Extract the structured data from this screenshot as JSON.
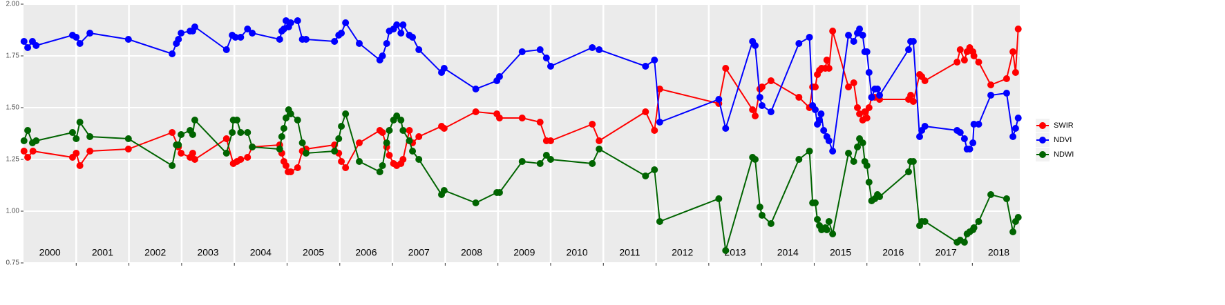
{
  "chart_data": {
    "type": "line",
    "xlim": [
      2000,
      2018.9
    ],
    "ylim": [
      0.75,
      2.0
    ],
    "yticks": [
      0.75,
      {
        "value": 1,
        "label": "1.00"
      },
      1.25,
      {
        "value": 1.5,
        "label": "1.50"
      },
      1.75,
      {
        "value": 2,
        "label": "2.00"
      }
    ],
    "xticks": [
      {
        "value": 2000.5,
        "label": "2000"
      },
      {
        "value": 2001.5,
        "label": "2001"
      },
      {
        "value": 2002.5,
        "label": "2002"
      },
      {
        "value": 2003.5,
        "label": "2003"
      },
      {
        "value": 2004.5,
        "label": "2004"
      },
      {
        "value": 2005.5,
        "label": "2005"
      },
      {
        "value": 2006.5,
        "label": "2006"
      },
      {
        "value": 2007.5,
        "label": "2007"
      },
      {
        "value": 2008.5,
        "label": "2008"
      },
      {
        "value": 2009.5,
        "label": "2009"
      },
      {
        "value": 2010.5,
        "label": "2010"
      },
      {
        "value": 2011.5,
        "label": "2011"
      },
      {
        "value": 2012.5,
        "label": "2012"
      },
      {
        "value": 2013.5,
        "label": "2013"
      },
      {
        "value": 2014.5,
        "label": "2014"
      },
      {
        "value": 2015.5,
        "label": "2015"
      },
      {
        "value": 2016.5,
        "label": "2016"
      },
      {
        "value": 2017.5,
        "label": "2017"
      },
      {
        "value": 2018.5,
        "label": "2018"
      }
    ],
    "xgrid": [
      2001,
      2002,
      2003,
      2004,
      2005,
      2006,
      2007,
      2008,
      2009,
      2010,
      2011,
      2012,
      2013,
      2014,
      2015,
      2016,
      2017,
      2018
    ],
    "grid": true,
    "legend": "right",
    "series": [
      {
        "name": "SWIR",
        "color": "#ff0000",
        "x": [
          2000.01,
          2000.08,
          2000.18,
          2000.93,
          2001.0,
          2001.07,
          2001.26,
          2001.99,
          2002.82,
          2002.94,
          2002.99,
          2003.16,
          2003.21,
          2003.25,
          2003.85,
          2003.98,
          2004.05,
          2004.12,
          2004.25,
          2004.34,
          2004.86,
          2004.9,
          2004.94,
          2004.98,
          2005.02,
          2005.07,
          2005.2,
          2005.29,
          2005.36,
          2005.9,
          2005.98,
          2006.03,
          2006.11,
          2006.37,
          2006.76,
          2006.81,
          2006.89,
          2006.94,
          2007.02,
          2007.08,
          2007.16,
          2007.2,
          2007.32,
          2007.38,
          2007.5,
          2007.93,
          2007.98,
          2008.58,
          2008.98,
          2009.03,
          2009.46,
          2009.8,
          2009.92,
          2010.0,
          2010.79,
          2010.92,
          2011.8,
          2011.97,
          2012.07,
          2013.19,
          2013.32,
          2013.83,
          2013.88,
          2013.97,
          2014.01,
          2014.18,
          2014.71,
          2014.91,
          2014.97,
          2015.02,
          2015.06,
          2015.1,
          2015.14,
          2015.21,
          2015.24,
          2015.28,
          2015.35,
          2015.65,
          2015.75,
          2015.82,
          2015.86,
          2015.92,
          2015.96,
          2016.0,
          2016.04,
          2016.09,
          2016.15,
          2016.24,
          2016.79,
          2016.83,
          2016.88,
          2017.0,
          2017.04,
          2017.1,
          2017.71,
          2017.77,
          2017.85,
          2017.9,
          2017.95,
          2018.01,
          2018.03,
          2018.12,
          2018.35,
          2018.65,
          2018.77,
          2018.82,
          2018.87
        ],
        "values": [
          1.29,
          1.26,
          1.29,
          1.26,
          1.28,
          1.22,
          1.29,
          1.3,
          1.38,
          1.31,
          1.28,
          1.26,
          1.28,
          1.25,
          1.35,
          1.23,
          1.24,
          1.25,
          1.26,
          1.31,
          1.32,
          1.28,
          1.24,
          1.22,
          1.19,
          1.19,
          1.21,
          1.29,
          1.3,
          1.32,
          1.28,
          1.24,
          1.21,
          1.33,
          1.39,
          1.38,
          1.31,
          1.27,
          1.23,
          1.22,
          1.23,
          1.25,
          1.39,
          1.33,
          1.36,
          1.41,
          1.4,
          1.48,
          1.47,
          1.45,
          1.45,
          1.43,
          1.34,
          1.34,
          1.42,
          1.34,
          1.48,
          1.39,
          1.59,
          1.52,
          1.69,
          1.49,
          1.46,
          1.59,
          1.6,
          1.63,
          1.55,
          1.5,
          1.6,
          1.6,
          1.66,
          1.68,
          1.69,
          1.69,
          1.73,
          1.69,
          1.87,
          1.6,
          1.62,
          1.5,
          1.47,
          1.44,
          1.48,
          1.45,
          1.5,
          1.55,
          1.55,
          1.54,
          1.54,
          1.56,
          1.53,
          1.66,
          1.65,
          1.63,
          1.72,
          1.78,
          1.73,
          1.77,
          1.79,
          1.77,
          1.75,
          1.72,
          1.61,
          1.64,
          1.77,
          1.67,
          1.88
        ]
      },
      {
        "name": "NDVI",
        "color": "#0000ff",
        "x": [
          2000.01,
          2000.08,
          2000.17,
          2000.24,
          2000.93,
          2001.0,
          2001.07,
          2001.26,
          2001.99,
          2002.82,
          2002.9,
          2002.94,
          2002.99,
          2003.16,
          2003.21,
          2003.25,
          2003.85,
          2003.96,
          2004.02,
          2004.12,
          2004.25,
          2004.34,
          2004.86,
          2004.9,
          2004.94,
          2004.98,
          2005.03,
          2005.07,
          2005.2,
          2005.29,
          2005.36,
          2005.9,
          2005.98,
          2006.03,
          2006.11,
          2006.37,
          2006.76,
          2006.81,
          2006.89,
          2006.94,
          2007.02,
          2007.08,
          2007.16,
          2007.2,
          2007.32,
          2007.38,
          2007.5,
          2007.93,
          2007.98,
          2008.58,
          2008.98,
          2009.03,
          2009.46,
          2009.8,
          2009.92,
          2010.0,
          2010.79,
          2010.92,
          2011.8,
          2011.97,
          2012.07,
          2013.19,
          2013.32,
          2013.83,
          2013.88,
          2013.97,
          2014.01,
          2014.18,
          2014.71,
          2014.91,
          2014.97,
          2015.02,
          2015.06,
          2015.1,
          2015.13,
          2015.18,
          2015.24,
          2015.28,
          2015.35,
          2015.65,
          2015.75,
          2015.82,
          2015.86,
          2015.92,
          2015.96,
          2016.0,
          2016.04,
          2016.09,
          2016.15,
          2016.2,
          2016.24,
          2016.79,
          2016.83,
          2016.88,
          2017.0,
          2017.04,
          2017.1,
          2017.71,
          2017.77,
          2017.85,
          2017.9,
          2017.95,
          2018.01,
          2018.03,
          2018.12,
          2018.35,
          2018.65,
          2018.77,
          2018.82,
          2018.87
        ],
        "values": [
          1.82,
          1.79,
          1.82,
          1.8,
          1.85,
          1.84,
          1.81,
          1.86,
          1.83,
          1.76,
          1.81,
          1.83,
          1.86,
          1.87,
          1.87,
          1.89,
          1.78,
          1.85,
          1.84,
          1.84,
          1.88,
          1.86,
          1.83,
          1.87,
          1.88,
          1.92,
          1.89,
          1.91,
          1.92,
          1.83,
          1.83,
          1.82,
          1.85,
          1.86,
          1.91,
          1.81,
          1.73,
          1.75,
          1.81,
          1.87,
          1.88,
          1.9,
          1.86,
          1.9,
          1.85,
          1.84,
          1.78,
          1.67,
          1.69,
          1.59,
          1.63,
          1.65,
          1.77,
          1.78,
          1.74,
          1.7,
          1.79,
          1.78,
          1.7,
          1.73,
          1.43,
          1.54,
          1.4,
          1.82,
          1.8,
          1.55,
          1.51,
          1.48,
          1.81,
          1.84,
          1.51,
          1.49,
          1.42,
          1.44,
          1.47,
          1.39,
          1.36,
          1.34,
          1.29,
          1.85,
          1.82,
          1.86,
          1.88,
          1.85,
          1.77,
          1.77,
          1.67,
          1.55,
          1.59,
          1.59,
          1.56,
          1.78,
          1.82,
          1.82,
          1.36,
          1.39,
          1.41,
          1.39,
          1.38,
          1.35,
          1.3,
          1.3,
          1.33,
          1.42,
          1.42,
          1.56,
          1.57,
          1.36,
          1.4,
          1.45
        ]
      },
      {
        "name": "NDWI",
        "color": "#006400",
        "x": [
          2000.01,
          2000.08,
          2000.17,
          2000.24,
          2000.93,
          2001.0,
          2001.07,
          2001.26,
          2001.99,
          2002.82,
          2002.9,
          2002.94,
          2002.99,
          2003.16,
          2003.21,
          2003.25,
          2003.85,
          2003.96,
          2003.98,
          2004.05,
          2004.12,
          2004.25,
          2004.34,
          2004.86,
          2004.9,
          2004.94,
          2004.98,
          2005.03,
          2005.07,
          2005.2,
          2005.29,
          2005.36,
          2005.9,
          2005.98,
          2006.03,
          2006.11,
          2006.37,
          2006.76,
          2006.81,
          2006.89,
          2006.94,
          2007.02,
          2007.08,
          2007.16,
          2007.2,
          2007.32,
          2007.38,
          2007.5,
          2007.93,
          2007.98,
          2008.58,
          2008.98,
          2009.03,
          2009.46,
          2009.8,
          2009.92,
          2010.0,
          2010.79,
          2010.92,
          2011.8,
          2011.97,
          2012.07,
          2013.19,
          2013.32,
          2013.83,
          2013.88,
          2013.97,
          2014.01,
          2014.18,
          2014.71,
          2014.91,
          2014.97,
          2015.02,
          2015.06,
          2015.1,
          2015.14,
          2015.21,
          2015.24,
          2015.28,
          2015.35,
          2015.65,
          2015.75,
          2015.82,
          2015.86,
          2015.92,
          2015.96,
          2016.0,
          2016.04,
          2016.09,
          2016.15,
          2016.2,
          2016.24,
          2016.79,
          2016.83,
          2016.88,
          2017.0,
          2017.04,
          2017.1,
          2017.71,
          2017.77,
          2017.85,
          2017.9,
          2017.95,
          2018.01,
          2018.03,
          2018.12,
          2018.35,
          2018.65,
          2018.77,
          2018.82,
          2018.87
        ],
        "values": [
          1.34,
          1.39,
          1.33,
          1.34,
          1.38,
          1.35,
          1.43,
          1.36,
          1.35,
          1.22,
          1.32,
          1.32,
          1.37,
          1.39,
          1.37,
          1.44,
          1.28,
          1.38,
          1.44,
          1.44,
          1.38,
          1.38,
          1.31,
          1.3,
          1.36,
          1.4,
          1.45,
          1.49,
          1.47,
          1.44,
          1.33,
          1.28,
          1.29,
          1.35,
          1.41,
          1.47,
          1.24,
          1.19,
          1.22,
          1.33,
          1.39,
          1.44,
          1.46,
          1.44,
          1.39,
          1.34,
          1.29,
          1.25,
          1.08,
          1.1,
          1.04,
          1.09,
          1.09,
          1.24,
          1.23,
          1.27,
          1.25,
          1.23,
          1.3,
          1.17,
          1.2,
          0.95,
          1.06,
          0.81,
          1.26,
          1.25,
          1.02,
          0.98,
          0.94,
          1.25,
          1.29,
          1.04,
          1.04,
          0.96,
          0.93,
          0.91,
          0.92,
          0.91,
          0.95,
          0.89,
          1.28,
          1.24,
          1.31,
          1.35,
          1.33,
          1.24,
          1.22,
          1.14,
          1.05,
          1.06,
          1.08,
          1.07,
          1.19,
          1.24,
          1.24,
          0.93,
          0.95,
          0.95,
          0.85,
          0.86,
          0.85,
          0.89,
          0.9,
          0.91,
          0.92,
          0.95,
          1.08,
          1.06,
          0.9,
          0.95,
          0.97
        ]
      }
    ]
  }
}
